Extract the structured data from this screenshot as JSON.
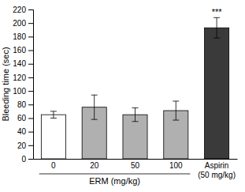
{
  "chart_data": {
    "type": "bar",
    "categories": [
      "0",
      "20",
      "50",
      "100",
      "Aspirin\n(50 mg/kg)"
    ],
    "values": [
      65,
      76,
      65,
      71,
      193
    ],
    "errors": [
      5,
      18,
      10,
      14,
      15
    ],
    "colors": [
      "#ffffff",
      "#b0b0b0",
      "#b0b0b0",
      "#b0b0b0",
      "#3a3a3a"
    ],
    "ylabel": "Bleeding time (sec)",
    "groups": [
      {
        "name": "ERM (mg/kg)",
        "categories": [
          "0",
          "20",
          "50",
          "100"
        ]
      }
    ],
    "annotations": [
      {
        "text": "***",
        "category": "Aspirin\n(50 mg/kg)"
      }
    ],
    "ylim": [
      0,
      220
    ],
    "yticks": [
      0,
      20,
      40,
      60,
      80,
      100,
      120,
      140,
      160,
      180,
      200,
      220
    ]
  }
}
